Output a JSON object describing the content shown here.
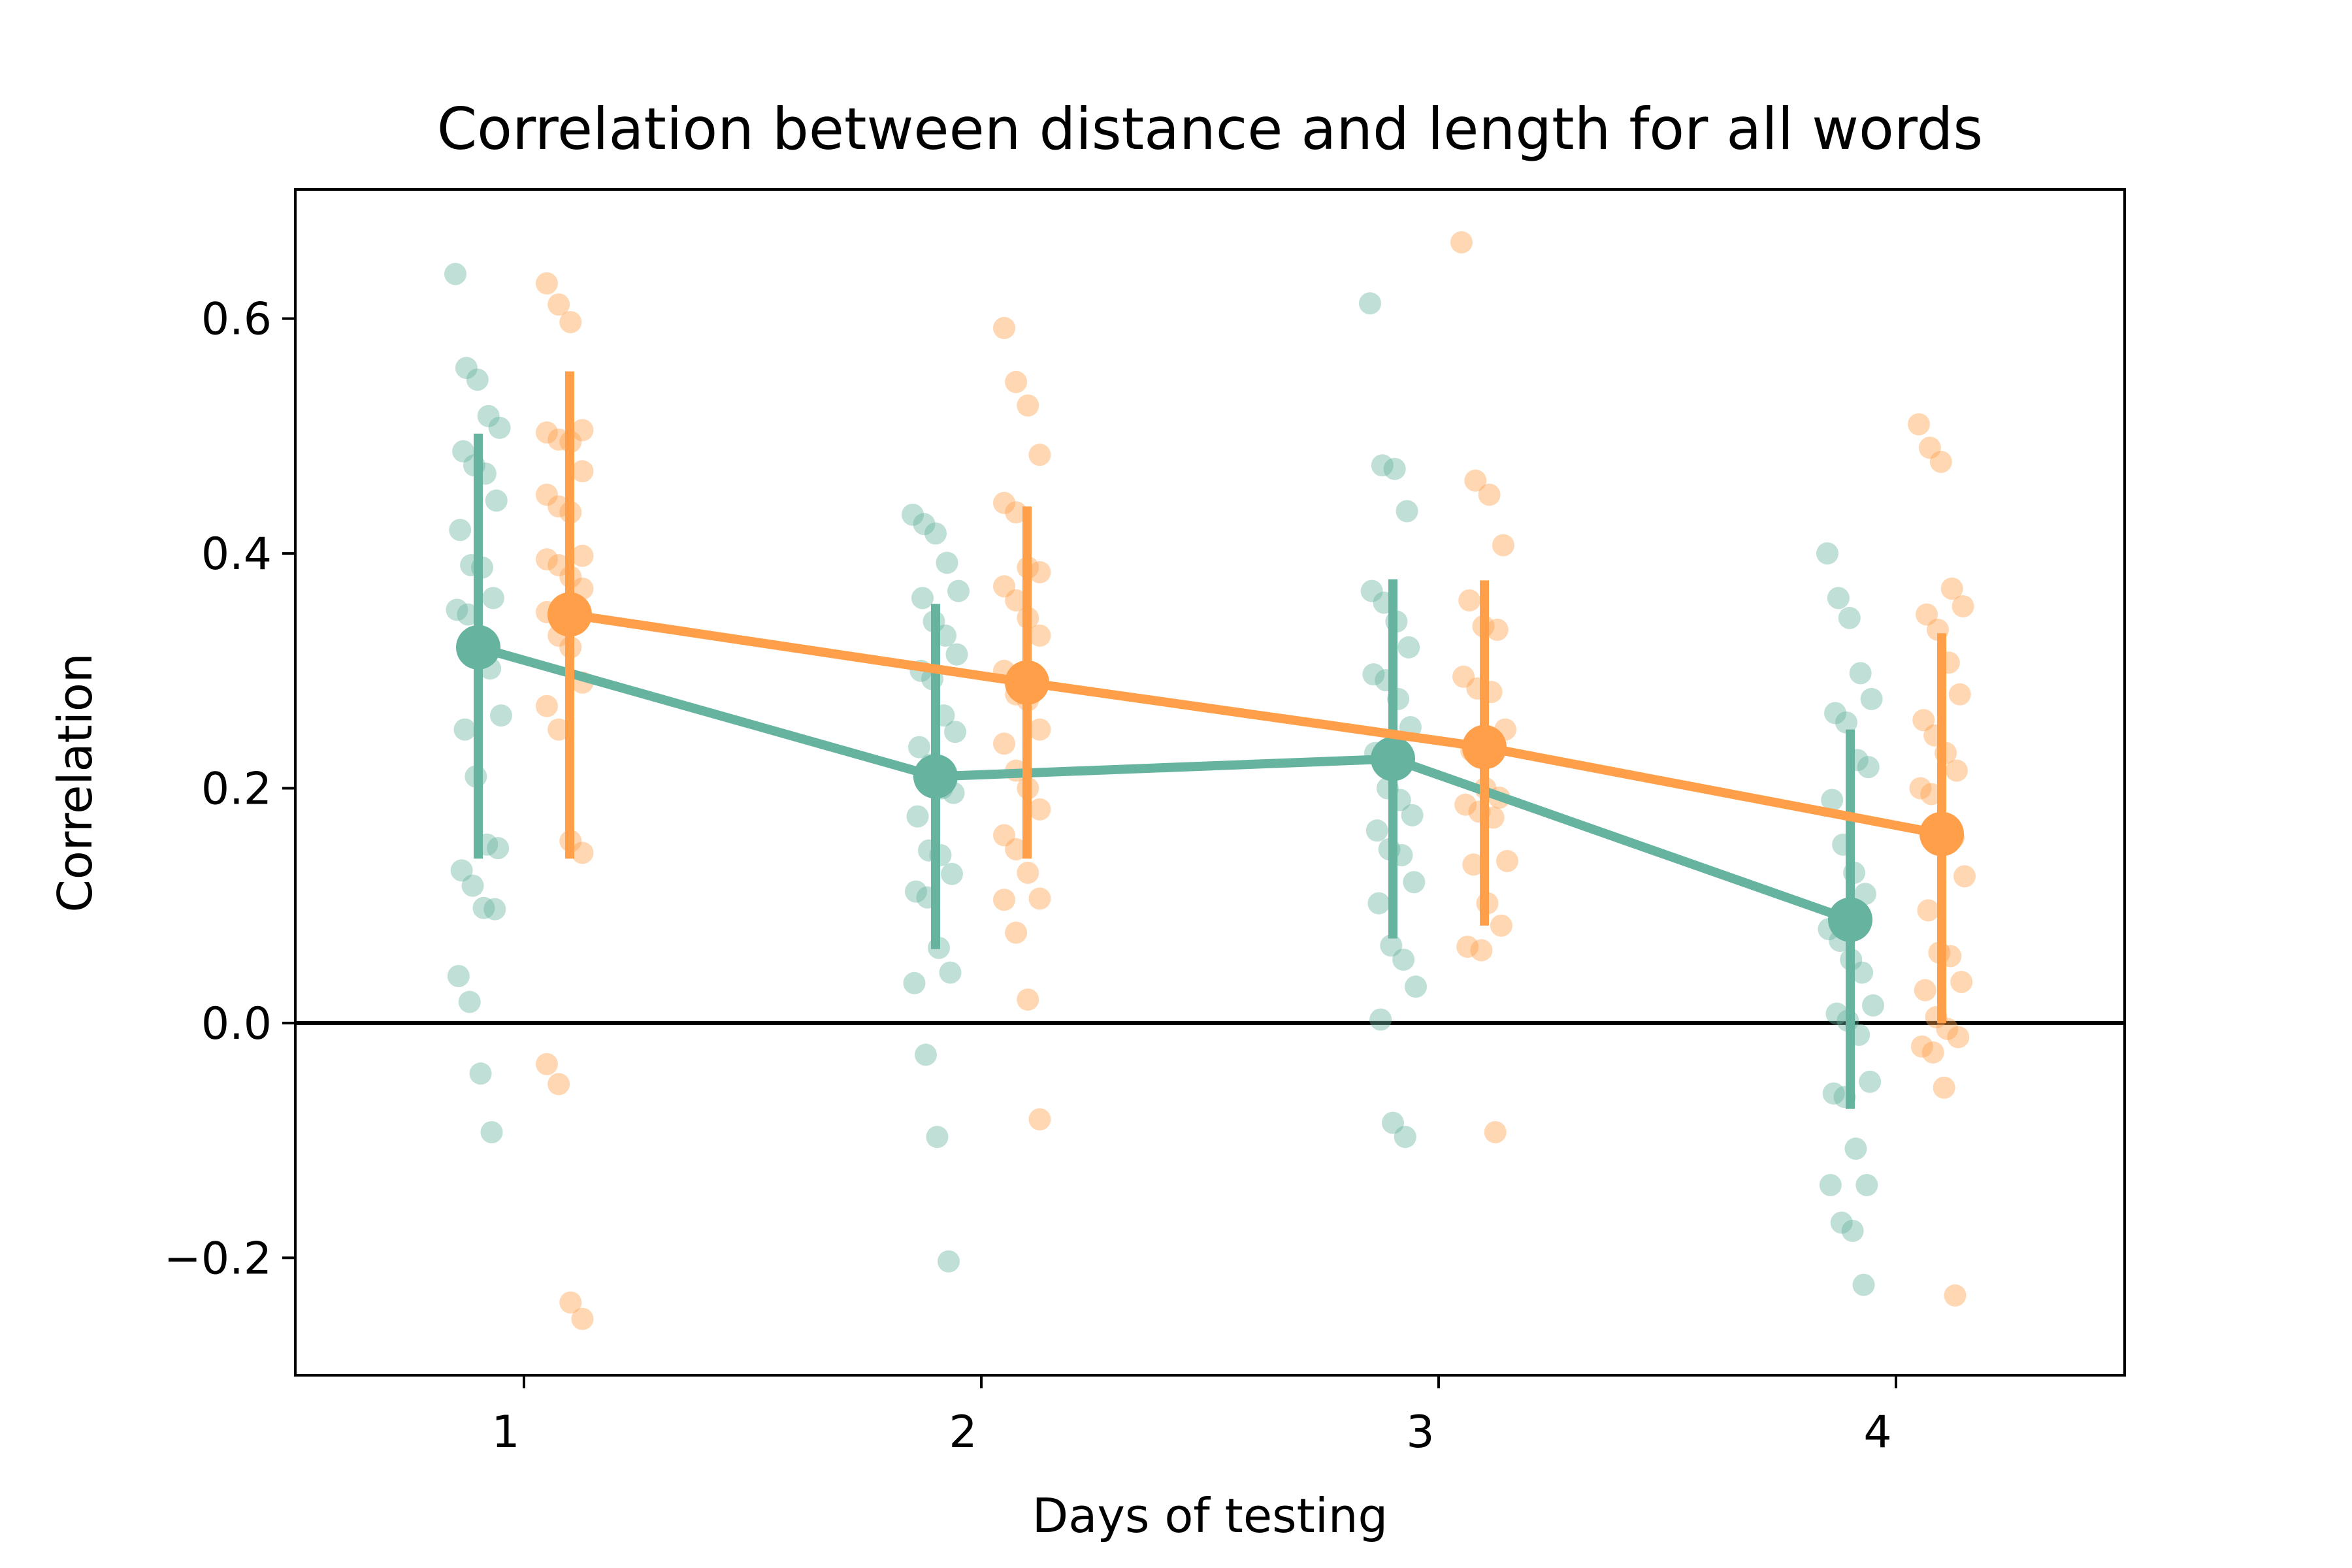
{
  "chart_data": {
    "type": "scatter",
    "subtype": "strip plot with point estimates and error bars",
    "title": "Correlation between distance and length for all words",
    "xlabel": "Days of testing",
    "ylabel": "Correlation",
    "categories": [
      "1",
      "2",
      "3",
      "4"
    ],
    "ylim": [
      -0.3,
      0.71
    ],
    "yticks": [
      -0.2,
      0.0,
      0.2,
      0.4,
      0.6
    ],
    "ytick_labels": [
      "−0.2",
      "0.0",
      "0.2",
      "0.4",
      "0.6"
    ],
    "grid": false,
    "legend": "none",
    "reference_line": {
      "y": 0.0,
      "color": "#000000"
    },
    "series": [
      {
        "color": "#66b3a0",
        "means": [
          0.32,
          0.21,
          0.225,
          0.088
        ],
        "ci_low": [
          0.14,
          0.063,
          0.072,
          -0.073
        ],
        "ci_high": [
          0.502,
          0.357,
          0.378,
          0.25
        ],
        "points": [
          [
            0.638,
            0.558,
            0.548,
            0.517,
            0.507,
            0.487,
            0.475,
            0.468,
            0.445,
            0.42,
            0.39,
            0.388,
            0.362,
            0.352,
            0.348,
            0.33,
            0.302,
            0.262,
            0.25,
            0.21,
            0.152,
            0.149,
            0.13,
            0.117,
            0.098,
            0.097,
            0.04,
            0.018,
            -0.043,
            -0.093
          ],
          [
            0.433,
            0.425,
            0.417,
            0.392,
            0.368,
            0.362,
            0.342,
            0.33,
            0.314,
            0.3,
            0.293,
            0.262,
            0.248,
            0.235,
            0.22,
            0.2,
            0.196,
            0.176,
            0.147,
            0.143,
            0.127,
            0.112,
            0.107,
            0.064,
            0.043,
            0.034,
            -0.027,
            -0.097,
            -0.203
          ],
          [
            0.613,
            0.475,
            0.472,
            0.436,
            0.368,
            0.358,
            0.342,
            0.32,
            0.297,
            0.292,
            0.276,
            0.252,
            0.23,
            0.2,
            0.19,
            0.177,
            0.164,
            0.148,
            0.143,
            0.12,
            0.102,
            0.066,
            0.054,
            0.031,
            0.003,
            -0.085,
            -0.097
          ],
          [
            0.4,
            0.362,
            0.345,
            0.298,
            0.276,
            0.264,
            0.256,
            0.224,
            0.218,
            0.19,
            0.152,
            0.128,
            0.11,
            0.08,
            0.07,
            0.054,
            0.043,
            0.015,
            0.008,
            0.002,
            -0.01,
            -0.05,
            -0.06,
            -0.063,
            -0.107,
            -0.138,
            -0.138,
            -0.17,
            -0.177,
            -0.223
          ]
        ]
      },
      {
        "color": "#ff9f4a",
        "means": [
          0.348,
          0.29,
          0.235,
          0.161
        ],
        "ci_low": [
          0.14,
          0.14,
          0.083,
          0.0
        ],
        "ci_high": [
          0.555,
          0.44,
          0.377,
          0.332
        ],
        "points": [
          [
            0.63,
            0.612,
            0.597,
            0.505,
            0.503,
            0.497,
            0.495,
            0.47,
            0.45,
            0.44,
            0.435,
            0.398,
            0.395,
            0.39,
            0.38,
            0.37,
            0.35,
            0.33,
            0.32,
            0.29,
            0.27,
            0.25,
            0.155,
            0.145,
            -0.035,
            -0.052,
            -0.238,
            -0.252
          ],
          [
            0.592,
            0.546,
            0.526,
            0.484,
            0.443,
            0.435,
            0.388,
            0.384,
            0.372,
            0.36,
            0.345,
            0.33,
            0.3,
            0.28,
            0.275,
            0.25,
            0.238,
            0.215,
            0.2,
            0.182,
            0.16,
            0.148,
            0.128,
            0.106,
            0.105,
            0.077,
            0.02,
            -0.082
          ],
          [
            0.665,
            0.462,
            0.45,
            0.407,
            0.36,
            0.338,
            0.335,
            0.295,
            0.285,
            0.282,
            0.25,
            0.232,
            0.2,
            0.192,
            0.186,
            0.18,
            0.175,
            0.138,
            0.135,
            0.102,
            0.083,
            0.065,
            0.062,
            -0.093
          ],
          [
            0.51,
            0.49,
            0.478,
            0.37,
            0.355,
            0.348,
            0.335,
            0.307,
            0.28,
            0.258,
            0.245,
            0.23,
            0.215,
            0.2,
            0.195,
            0.17,
            0.158,
            0.125,
            0.096,
            0.06,
            0.057,
            0.035,
            0.028,
            0.005,
            -0.005,
            -0.012,
            -0.02,
            -0.025,
            -0.055,
            -0.232
          ]
        ]
      }
    ]
  }
}
